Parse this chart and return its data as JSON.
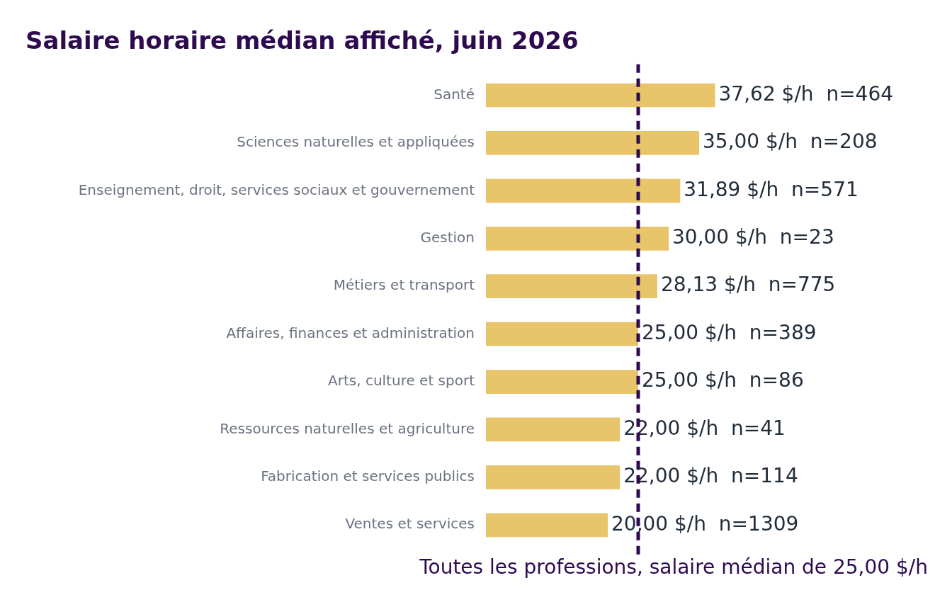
{
  "chart_data": {
    "type": "bar",
    "orientation": "horizontal",
    "title": "Salaire horaire médian affiché, juin 2026",
    "categories": [
      "Santé",
      "Sciences naturelles et appliquées",
      "Enseignement, droit, services sociaux et gouvernement",
      "Gestion",
      "Métiers et transport",
      "Affaires, finances et administration",
      "Arts, culture et sport",
      "Ressources naturelles et agriculture",
      "Fabrication et services publics",
      "Ventes et services"
    ],
    "values": [
      37.62,
      35.0,
      31.89,
      30.0,
      28.13,
      25.0,
      25.0,
      22.0,
      22.0,
      20.0
    ],
    "value_labels": [
      "37,62 $/h  n=464",
      "35,00 $/h  n=208",
      "31,89 $/h  n=571",
      "30,00 $/h  n=23",
      "28,13 $/h  n=775",
      "25,00 $/h  n=389",
      "25,00 $/h  n=86",
      "22,00 $/h  n=41",
      "22,00 $/h  n=114",
      "20,00 $/h  n=1309"
    ],
    "color": "#e8c46a",
    "tick_labels": "y",
    "ref_lines": [
      {
        "axis": "x",
        "value": 25,
        "label": "Toutes les professions, salaire médian de 25,00 $/h",
        "color": "#2e0a4f",
        "line_style": "dashed"
      }
    ]
  }
}
